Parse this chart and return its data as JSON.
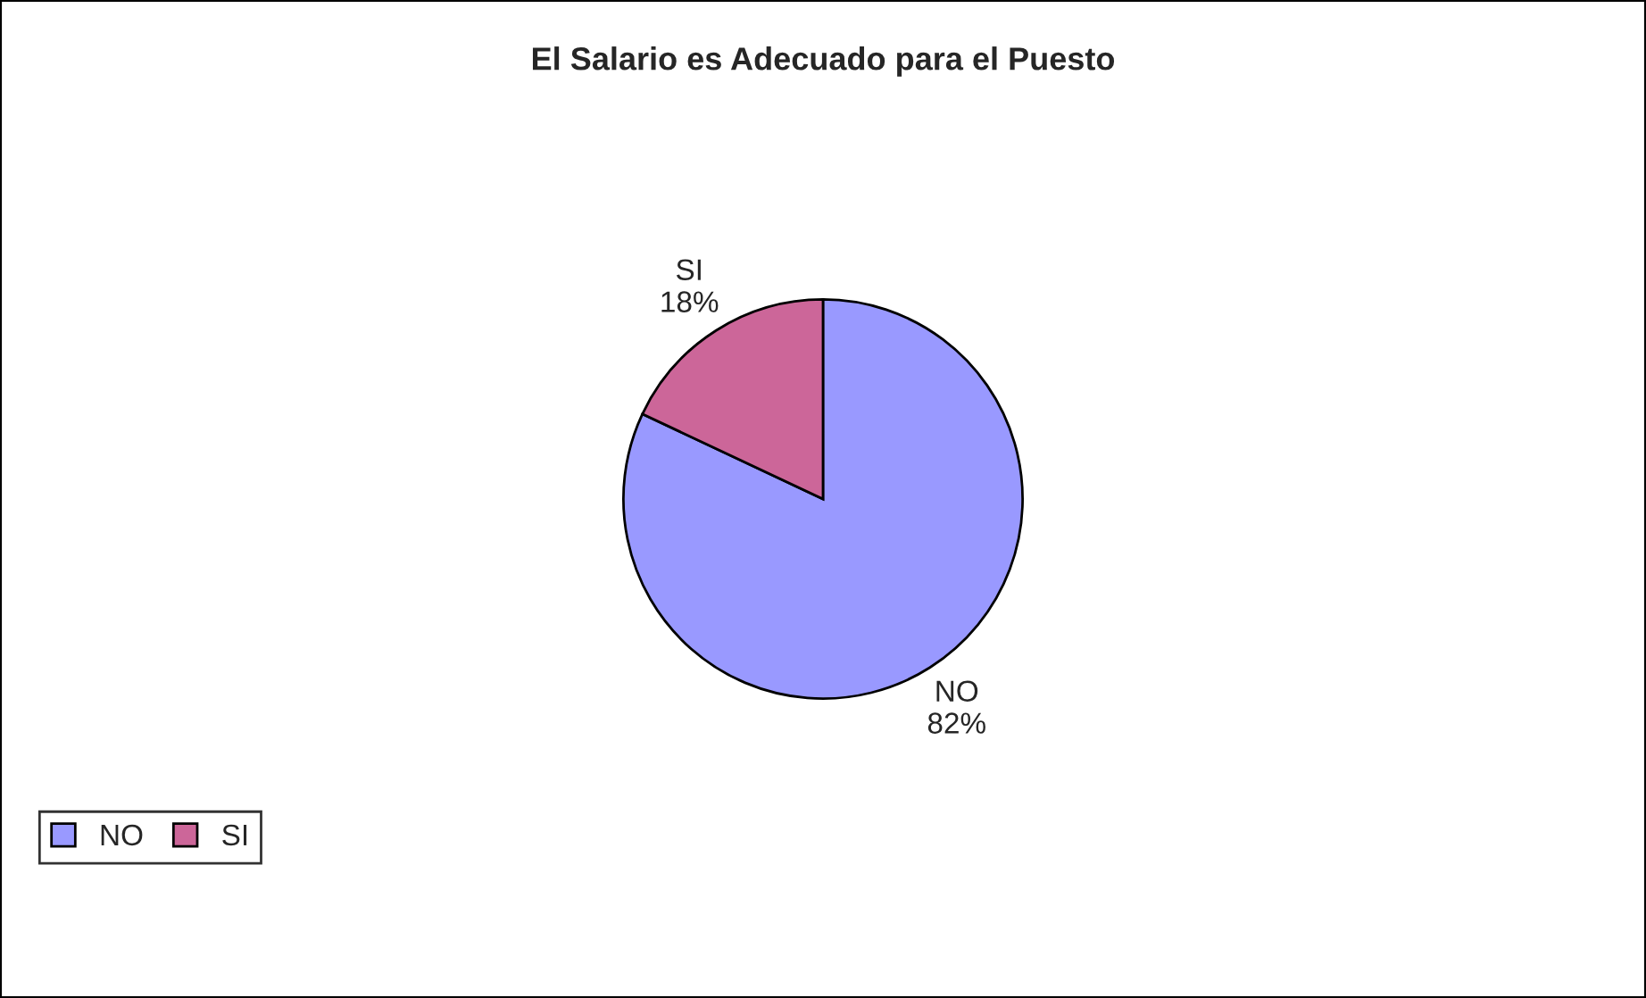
{
  "chart_data": {
    "type": "pie",
    "title": "El Salario es Adecuado para el Puesto",
    "categories": [
      "NO",
      "SI"
    ],
    "values": [
      82,
      18
    ],
    "value_labels": [
      "82%",
      "18%"
    ],
    "colors": [
      "#9999ff",
      "#cc6699"
    ],
    "legend": "bottom left"
  }
}
